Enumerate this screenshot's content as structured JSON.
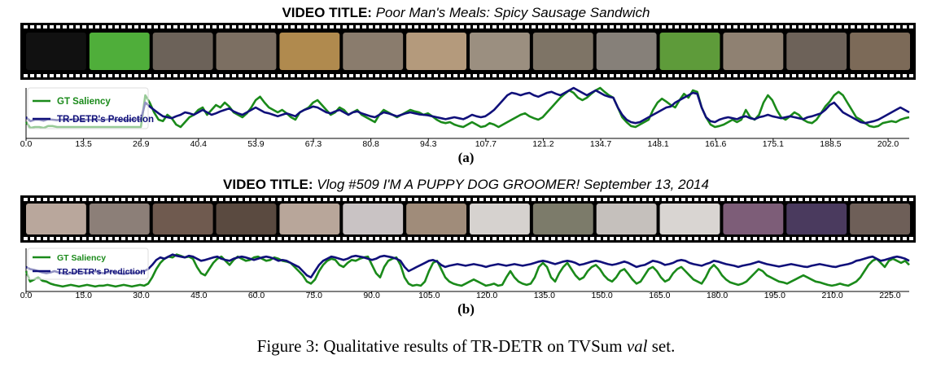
{
  "panels": [
    {
      "title_prefix": "VIDEO TITLE:",
      "title": "Poor Man's Meals: Spicy Sausage Sandwich",
      "label": "(a)",
      "frame_colors": [
        "#111111",
        "#4fae3a",
        "#6c6259",
        "#7c6f62",
        "#b08a4e",
        "#8a7c6d",
        "#b49a7c",
        "#9b8f80",
        "#7e7466",
        "#868079",
        "#5e9b3a",
        "#8f8172",
        "#6d6259",
        "#7c6a58"
      ]
    },
    {
      "title_prefix": "VIDEO TITLE:",
      "title": "Vlog #509 I'M A PUPPY DOG GROOMER! September 13, 2014",
      "label": "(b)",
      "frame_colors": [
        "#b9a79c",
        "#8c7f78",
        "#6f5a4f",
        "#5a4a40",
        "#b8a69a",
        "#c9c3c4",
        "#a08c7a",
        "#d6d2cf",
        "#7c7b6a",
        "#c5c0bc",
        "#d9d5d2",
        "#7d5d78",
        "#4a3a5e",
        "#6e5f58"
      ]
    }
  ],
  "caption": {
    "prefix": "Figure 3: Qualitative results of TR-DETR on TVSum ",
    "italic": "val",
    "suffix": " set."
  },
  "chart_data": [
    {
      "type": "line",
      "xlim": [
        0,
        207
      ],
      "ylim": [
        0,
        1
      ],
      "xticks": [
        "0.0",
        "13.5",
        "26.9",
        "40.4",
        "53.9",
        "67.3",
        "80.8",
        "94.3",
        "107.7",
        "121.2",
        "134.7",
        "148.1",
        "161.6",
        "175.1",
        "188.5",
        "202.0"
      ],
      "tick_step": 13.47,
      "legend_position": "top-left",
      "series": [
        {
          "name": "GT Saliency",
          "color": "#1a8a1a",
          "values": [
            0.3,
            0.18,
            0.2,
            0.2,
            0.18,
            0.22,
            0.22,
            0.2,
            0.2,
            0.2,
            0.2,
            0.2,
            0.2,
            0.2,
            0.2,
            0.2,
            0.2,
            0.2,
            0.2,
            0.2,
            0.2,
            0.2,
            0.2,
            0.2,
            0.2,
            0.2,
            0.2,
            0.85,
            0.7,
            0.5,
            0.35,
            0.32,
            0.45,
            0.38,
            0.25,
            0.2,
            0.3,
            0.4,
            0.45,
            0.55,
            0.6,
            0.45,
            0.55,
            0.65,
            0.6,
            0.7,
            0.62,
            0.5,
            0.45,
            0.4,
            0.48,
            0.6,
            0.75,
            0.82,
            0.7,
            0.6,
            0.55,
            0.5,
            0.55,
            0.48,
            0.4,
            0.35,
            0.5,
            0.55,
            0.6,
            0.7,
            0.75,
            0.65,
            0.55,
            0.45,
            0.5,
            0.6,
            0.55,
            0.45,
            0.5,
            0.55,
            0.45,
            0.4,
            0.35,
            0.3,
            0.45,
            0.55,
            0.5,
            0.45,
            0.4,
            0.45,
            0.5,
            0.55,
            0.52,
            0.5,
            0.45,
            0.48,
            0.42,
            0.35,
            0.3,
            0.28,
            0.3,
            0.25,
            0.22,
            0.2,
            0.25,
            0.3,
            0.25,
            0.2,
            0.22,
            0.28,
            0.25,
            0.2,
            0.25,
            0.3,
            0.35,
            0.4,
            0.45,
            0.48,
            0.42,
            0.38,
            0.35,
            0.4,
            0.5,
            0.6,
            0.7,
            0.8,
            0.88,
            0.95,
            0.9,
            0.8,
            0.75,
            0.8,
            0.88,
            0.95,
            1.0,
            0.92,
            0.85,
            0.8,
            0.6,
            0.4,
            0.3,
            0.22,
            0.2,
            0.25,
            0.3,
            0.35,
            0.55,
            0.7,
            0.78,
            0.72,
            0.65,
            0.6,
            0.75,
            0.88,
            0.8,
            0.95,
            0.92,
            0.6,
            0.4,
            0.25,
            0.2,
            0.22,
            0.25,
            0.3,
            0.35,
            0.3,
            0.35,
            0.55,
            0.4,
            0.35,
            0.45,
            0.7,
            0.85,
            0.75,
            0.55,
            0.4,
            0.35,
            0.42,
            0.5,
            0.45,
            0.35,
            0.3,
            0.28,
            0.35,
            0.48,
            0.62,
            0.72,
            0.85,
            0.92,
            0.85,
            0.7,
            0.55,
            0.4,
            0.35,
            0.28,
            0.22,
            0.2,
            0.22,
            0.28,
            0.3,
            0.32,
            0.3,
            0.35,
            0.38,
            0.4
          ]
        },
        {
          "name": "TR-DETR's Prediction",
          "color": "#10107a",
          "values": [
            0.4,
            0.32,
            0.35,
            0.35,
            0.33,
            0.36,
            0.35,
            0.34,
            0.35,
            0.34,
            0.35,
            0.36,
            0.35,
            0.34,
            0.35,
            0.34,
            0.35,
            0.34,
            0.35,
            0.36,
            0.35,
            0.34,
            0.35,
            0.34,
            0.35,
            0.36,
            0.35,
            0.7,
            0.62,
            0.55,
            0.48,
            0.42,
            0.4,
            0.38,
            0.42,
            0.45,
            0.5,
            0.48,
            0.45,
            0.5,
            0.55,
            0.5,
            0.45,
            0.48,
            0.52,
            0.55,
            0.58,
            0.52,
            0.48,
            0.45,
            0.5,
            0.55,
            0.6,
            0.55,
            0.5,
            0.48,
            0.45,
            0.42,
            0.45,
            0.48,
            0.45,
            0.42,
            0.5,
            0.55,
            0.58,
            0.62,
            0.6,
            0.55,
            0.5,
            0.48,
            0.52,
            0.55,
            0.5,
            0.45,
            0.5,
            0.52,
            0.48,
            0.45,
            0.42,
            0.4,
            0.45,
            0.5,
            0.48,
            0.45,
            0.42,
            0.45,
            0.48,
            0.5,
            0.48,
            0.46,
            0.45,
            0.44,
            0.42,
            0.4,
            0.38,
            0.36,
            0.38,
            0.4,
            0.38,
            0.36,
            0.4,
            0.45,
            0.42,
            0.4,
            0.42,
            0.48,
            0.55,
            0.65,
            0.75,
            0.85,
            0.9,
            0.88,
            0.85,
            0.88,
            0.9,
            0.85,
            0.82,
            0.86,
            0.9,
            0.92,
            0.88,
            0.85,
            0.9,
            0.95,
            1.0,
            0.95,
            0.9,
            0.85,
            0.9,
            0.95,
            0.9,
            0.85,
            0.82,
            0.8,
            0.6,
            0.45,
            0.35,
            0.3,
            0.28,
            0.3,
            0.35,
            0.4,
            0.45,
            0.5,
            0.55,
            0.6,
            0.62,
            0.7,
            0.75,
            0.8,
            0.85,
            0.9,
            0.88,
            0.6,
            0.4,
            0.32,
            0.3,
            0.35,
            0.38,
            0.4,
            0.38,
            0.36,
            0.4,
            0.42,
            0.38,
            0.36,
            0.4,
            0.42,
            0.45,
            0.42,
            0.4,
            0.38,
            0.4,
            0.42,
            0.4,
            0.38,
            0.36,
            0.4,
            0.42,
            0.45,
            0.48,
            0.55,
            0.65,
            0.7,
            0.6,
            0.5,
            0.45,
            0.4,
            0.35,
            0.3,
            0.28,
            0.3,
            0.32,
            0.35,
            0.4,
            0.45,
            0.5,
            0.55,
            0.6,
            0.55,
            0.5
          ]
        }
      ]
    },
    {
      "type": "line",
      "xlim": [
        0,
        230
      ],
      "ylim": [
        0,
        1
      ],
      "xticks": [
        "0.0",
        "15.0",
        "30.0",
        "45.0",
        "60.0",
        "75.0",
        "90.0",
        "105.0",
        "120.0",
        "135.0",
        "150.0",
        "165.0",
        "180.0",
        "195.0",
        "210.0",
        "225.0"
      ],
      "tick_step": 15,
      "legend_position": "top-left",
      "series": [
        {
          "name": "GT Saliency",
          "color": "#1a8a1a",
          "values": [
            0.45,
            0.2,
            0.25,
            0.3,
            0.22,
            0.2,
            0.15,
            0.12,
            0.1,
            0.08,
            0.1,
            0.12,
            0.1,
            0.08,
            0.1,
            0.12,
            0.1,
            0.08,
            0.1,
            0.1,
            0.12,
            0.1,
            0.08,
            0.1,
            0.12,
            0.1,
            0.08,
            0.1,
            0.12,
            0.1,
            0.15,
            0.3,
            0.5,
            0.65,
            0.75,
            0.8,
            0.78,
            0.85,
            0.82,
            0.78,
            0.8,
            0.75,
            0.55,
            0.4,
            0.35,
            0.5,
            0.65,
            0.75,
            0.8,
            0.7,
            0.6,
            0.72,
            0.8,
            0.75,
            0.7,
            0.72,
            0.78,
            0.8,
            0.75,
            0.7,
            0.72,
            0.78,
            0.75,
            0.7,
            0.68,
            0.65,
            0.55,
            0.45,
            0.35,
            0.2,
            0.15,
            0.25,
            0.45,
            0.6,
            0.7,
            0.75,
            0.72,
            0.6,
            0.55,
            0.65,
            0.72,
            0.7,
            0.75,
            0.78,
            0.8,
            0.6,
            0.4,
            0.3,
            0.55,
            0.7,
            0.75,
            0.78,
            0.6,
            0.3,
            0.15,
            0.1,
            0.12,
            0.1,
            0.2,
            0.45,
            0.65,
            0.7,
            0.5,
            0.3,
            0.2,
            0.15,
            0.12,
            0.1,
            0.15,
            0.2,
            0.25,
            0.2,
            0.15,
            0.1,
            0.12,
            0.15,
            0.1,
            0.12,
            0.3,
            0.45,
            0.3,
            0.2,
            0.15,
            0.12,
            0.15,
            0.3,
            0.55,
            0.65,
            0.55,
            0.3,
            0.2,
            0.4,
            0.55,
            0.65,
            0.5,
            0.35,
            0.25,
            0.3,
            0.45,
            0.55,
            0.6,
            0.5,
            0.35,
            0.25,
            0.2,
            0.3,
            0.45,
            0.5,
            0.38,
            0.25,
            0.15,
            0.2,
            0.35,
            0.5,
            0.55,
            0.45,
            0.3,
            0.2,
            0.25,
            0.4,
            0.5,
            0.55,
            0.45,
            0.35,
            0.25,
            0.2,
            0.15,
            0.3,
            0.5,
            0.6,
            0.5,
            0.35,
            0.25,
            0.18,
            0.15,
            0.12,
            0.15,
            0.2,
            0.3,
            0.4,
            0.5,
            0.45,
            0.35,
            0.3,
            0.25,
            0.2,
            0.18,
            0.15,
            0.2,
            0.25,
            0.3,
            0.35,
            0.3,
            0.25,
            0.2,
            0.18,
            0.15,
            0.12,
            0.1,
            0.12,
            0.15,
            0.12,
            0.1,
            0.15,
            0.2,
            0.3,
            0.45,
            0.6,
            0.7,
            0.75,
            0.65,
            0.55,
            0.7,
            0.75,
            0.7,
            0.65,
            0.7,
            0.6
          ]
        },
        {
          "name": "TR-DETR's Prediction",
          "color": "#10107a",
          "values": [
            0.55,
            0.5,
            0.48,
            0.45,
            0.42,
            0.4,
            0.42,
            0.45,
            0.42,
            0.4,
            0.38,
            0.4,
            0.42,
            0.45,
            0.42,
            0.4,
            0.42,
            0.45,
            0.42,
            0.4,
            0.42,
            0.45,
            0.42,
            0.4,
            0.38,
            0.4,
            0.42,
            0.4,
            0.42,
            0.45,
            0.5,
            0.6,
            0.72,
            0.78,
            0.75,
            0.8,
            0.85,
            0.82,
            0.8,
            0.78,
            0.82,
            0.8,
            0.75,
            0.7,
            0.72,
            0.75,
            0.78,
            0.8,
            0.75,
            0.72,
            0.7,
            0.75,
            0.78,
            0.8,
            0.78,
            0.75,
            0.72,
            0.75,
            0.78,
            0.8,
            0.78,
            0.75,
            0.7,
            0.72,
            0.7,
            0.65,
            0.6,
            0.55,
            0.45,
            0.35,
            0.3,
            0.45,
            0.6,
            0.7,
            0.75,
            0.8,
            0.78,
            0.75,
            0.72,
            0.75,
            0.8,
            0.82,
            0.8,
            0.78,
            0.75,
            0.72,
            0.75,
            0.8,
            0.82,
            0.8,
            0.78,
            0.75,
            0.7,
            0.55,
            0.45,
            0.5,
            0.55,
            0.6,
            0.65,
            0.7,
            0.72,
            0.68,
            0.6,
            0.55,
            0.58,
            0.6,
            0.62,
            0.6,
            0.58,
            0.6,
            0.62,
            0.6,
            0.58,
            0.55,
            0.58,
            0.6,
            0.62,
            0.6,
            0.58,
            0.6,
            0.62,
            0.6,
            0.58,
            0.6,
            0.62,
            0.65,
            0.68,
            0.7,
            0.68,
            0.65,
            0.62,
            0.65,
            0.68,
            0.7,
            0.68,
            0.65,
            0.6,
            0.62,
            0.65,
            0.68,
            0.7,
            0.68,
            0.65,
            0.62,
            0.6,
            0.62,
            0.65,
            0.68,
            0.65,
            0.6,
            0.55,
            0.58,
            0.6,
            0.65,
            0.7,
            0.68,
            0.65,
            0.6,
            0.62,
            0.65,
            0.7,
            0.72,
            0.7,
            0.65,
            0.62,
            0.6,
            0.58,
            0.62,
            0.65,
            0.7,
            0.68,
            0.65,
            0.62,
            0.6,
            0.58,
            0.55,
            0.58,
            0.6,
            0.62,
            0.65,
            0.68,
            0.65,
            0.62,
            0.6,
            0.58,
            0.56,
            0.58,
            0.6,
            0.62,
            0.6,
            0.58,
            0.56,
            0.55,
            0.58,
            0.6,
            0.62,
            0.6,
            0.58,
            0.56,
            0.55,
            0.58,
            0.6,
            0.62,
            0.65,
            0.7,
            0.72,
            0.75,
            0.78,
            0.8,
            0.75,
            0.7,
            0.72,
            0.75,
            0.78,
            0.8,
            0.78,
            0.75,
            0.7
          ]
        }
      ]
    }
  ]
}
